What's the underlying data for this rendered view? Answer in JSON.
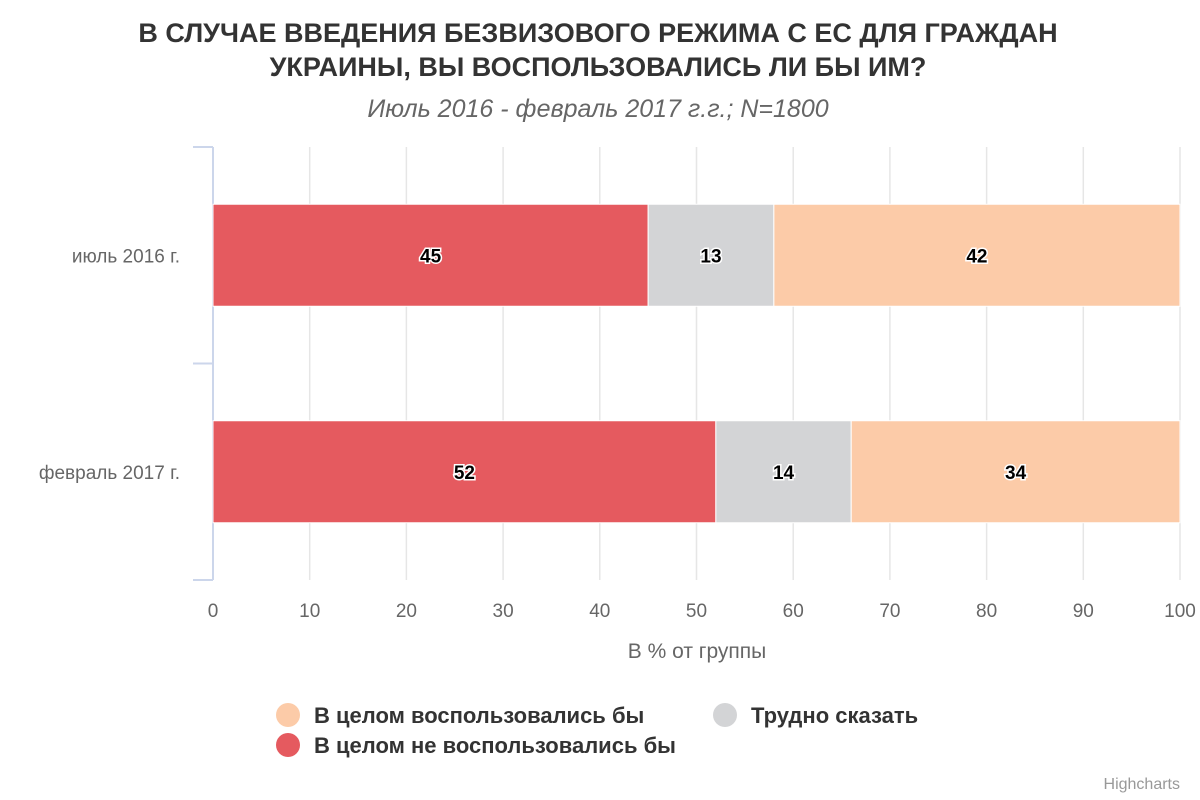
{
  "chart_data": {
    "type": "bar",
    "orientation": "horizontal",
    "stacked": true,
    "title": "В СЛУЧАЕ ВВЕДЕНИЯ БЕЗВИЗОВОГО РЕЖИМА С ЕС ДЛЯ ГРАЖДАН УКРАИНЫ, ВЫ ВОСПОЛЬЗОВАЛИСЬ ЛИ БЫ ИМ?",
    "title_lines": [
      "В СЛУЧАЕ ВВЕДЕНИЯ БЕЗВИЗОВОГО РЕЖИМА С ЕС ДЛЯ ГРАЖДАН",
      "УКРАИНЫ, ВЫ ВОСПОЛЬЗОВАЛИСЬ ЛИ БЫ ИМ?"
    ],
    "subtitle": "Июль 2016 - февраль 2017 г.г.; N=1800",
    "categories": [
      "июль 2016 г.",
      "февраль 2017 г."
    ],
    "series": [
      {
        "name": "В целом не воспользовались бы",
        "color": "#e55a5f",
        "values": [
          45,
          52
        ]
      },
      {
        "name": "Трудно сказать",
        "color": "#d3d4d6",
        "values": [
          13,
          14
        ]
      },
      {
        "name": "В целом воспользовались бы",
        "color": "#fccba8",
        "values": [
          42,
          34
        ]
      }
    ],
    "xlabel": "В % от группы",
    "xlim": [
      0,
      100
    ],
    "xticks": [
      0,
      10,
      20,
      30,
      40,
      50,
      60,
      70,
      80,
      90,
      100
    ],
    "grid": true,
    "legend": {
      "placement": "bottom-center",
      "order": [
        "В целом воспользовались бы",
        "Трудно сказать",
        "В целом не воспользовались бы"
      ]
    },
    "credits": "Highcharts"
  }
}
